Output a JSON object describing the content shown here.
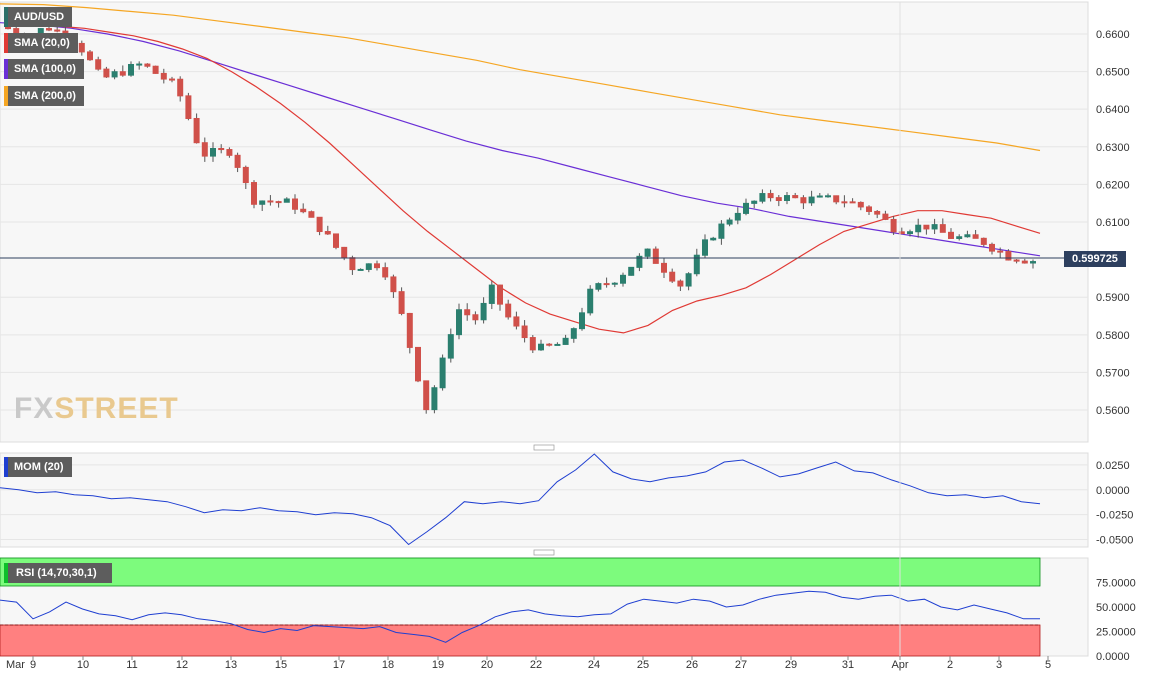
{
  "chart_data": [
    {
      "type": "candlestick",
      "symbol": "AUD/USD",
      "legend": [
        {
          "label": "AUD/USD",
          "color": "#2b6f68"
        },
        {
          "label": "SMA (20,0)",
          "color": "#e03a35"
        },
        {
          "label": "SMA (100,0)",
          "color": "#6a2fd6"
        },
        {
          "label": "SMA (200,0)",
          "color": "#f5a623"
        }
      ],
      "last_price": "0.599725",
      "y_ticks": [
        "0.6600",
        "0.6500",
        "0.6400",
        "0.6300",
        "0.6200",
        "0.6100",
        "0.5900",
        "0.5800",
        "0.5700",
        "0.5600"
      ],
      "ylim": [
        0.5515,
        0.6685
      ],
      "x_labels": [
        "Mar",
        "9",
        "10",
        "11",
        "12",
        "13",
        "15",
        "17",
        "18",
        "19",
        "20",
        "22",
        "24",
        "25",
        "26",
        "27",
        "29",
        "31",
        "Apr",
        "2",
        "3",
        "5"
      ],
      "watermark": {
        "part1": "FX",
        "part2": "STREET"
      },
      "sma20": [
        0.662,
        0.6615,
        0.6605,
        0.6595,
        0.658,
        0.656,
        0.6535,
        0.65,
        0.646,
        0.6415,
        0.6365,
        0.631,
        0.625,
        0.619,
        0.613,
        0.6075,
        0.6025,
        0.5975,
        0.5925,
        0.5885,
        0.5855,
        0.5835,
        0.5815,
        0.5805,
        0.5825,
        0.5865,
        0.589,
        0.5905,
        0.5925,
        0.596,
        0.6,
        0.604,
        0.6075,
        0.6095,
        0.6115,
        0.613,
        0.613,
        0.612,
        0.611,
        0.609,
        0.607
      ],
      "sma100": [
        0.663,
        0.6625,
        0.6615,
        0.66,
        0.658,
        0.6555,
        0.6525,
        0.6495,
        0.6465,
        0.6435,
        0.6405,
        0.6375,
        0.6345,
        0.6315,
        0.629,
        0.627,
        0.6245,
        0.622,
        0.6195,
        0.617,
        0.615,
        0.6135,
        0.6115,
        0.61,
        0.6085,
        0.607,
        0.6055,
        0.604,
        0.6025,
        0.601
      ],
      "sma200": [
        0.668,
        0.6678,
        0.667,
        0.666,
        0.665,
        0.6635,
        0.662,
        0.6605,
        0.659,
        0.657,
        0.655,
        0.653,
        0.6505,
        0.6485,
        0.6465,
        0.6445,
        0.6425,
        0.6405,
        0.6385,
        0.637,
        0.6355,
        0.634,
        0.6325,
        0.631,
        0.629
      ]
    },
    {
      "type": "line",
      "label": "MOM (20)",
      "y_ticks": [
        "0.0250",
        "0.0000",
        "-0.0250",
        "-0.0500"
      ],
      "ylim": [
        -0.0575,
        0.037
      ],
      "values": [
        0.002,
        0.0,
        -0.003,
        -0.002,
        -0.005,
        -0.006,
        -0.009,
        -0.008,
        -0.01,
        -0.012,
        -0.017,
        -0.023,
        -0.02,
        -0.021,
        -0.018,
        -0.021,
        -0.022,
        -0.025,
        -0.023,
        -0.024,
        -0.028,
        -0.036,
        -0.055,
        -0.042,
        -0.028,
        -0.012,
        -0.014,
        -0.012,
        -0.014,
        -0.011,
        0.008,
        0.02,
        0.036,
        0.018,
        0.011,
        0.008,
        0.012,
        0.014,
        0.018,
        0.028,
        0.03,
        0.022,
        0.013,
        0.016,
        0.022,
        0.028,
        0.019,
        0.017,
        0.01,
        0.004,
        -0.003,
        -0.006,
        -0.005,
        -0.008,
        -0.006,
        -0.012,
        -0.014
      ]
    },
    {
      "type": "line",
      "label": "RSI (14,70,30,1)",
      "y_ticks": [
        "75.0000",
        "50.0000",
        "25.0000",
        "0.0000"
      ],
      "ylim": [
        0,
        100
      ],
      "overbought": 70,
      "oversold": 30,
      "values": [
        57,
        55,
        38,
        45,
        55,
        48,
        43,
        41,
        37,
        42,
        44,
        42,
        38,
        36,
        33,
        27,
        24,
        28,
        26,
        31,
        30,
        29,
        28,
        30,
        24,
        22,
        20,
        14,
        24,
        31,
        40,
        45,
        47,
        43,
        41,
        40,
        42,
        43,
        53,
        58,
        56,
        54,
        58,
        56,
        50,
        52,
        58,
        62,
        64,
        66,
        65,
        60,
        58,
        61,
        62,
        56,
        58,
        50,
        47,
        52,
        48,
        44,
        38,
        38
      ]
    }
  ]
}
